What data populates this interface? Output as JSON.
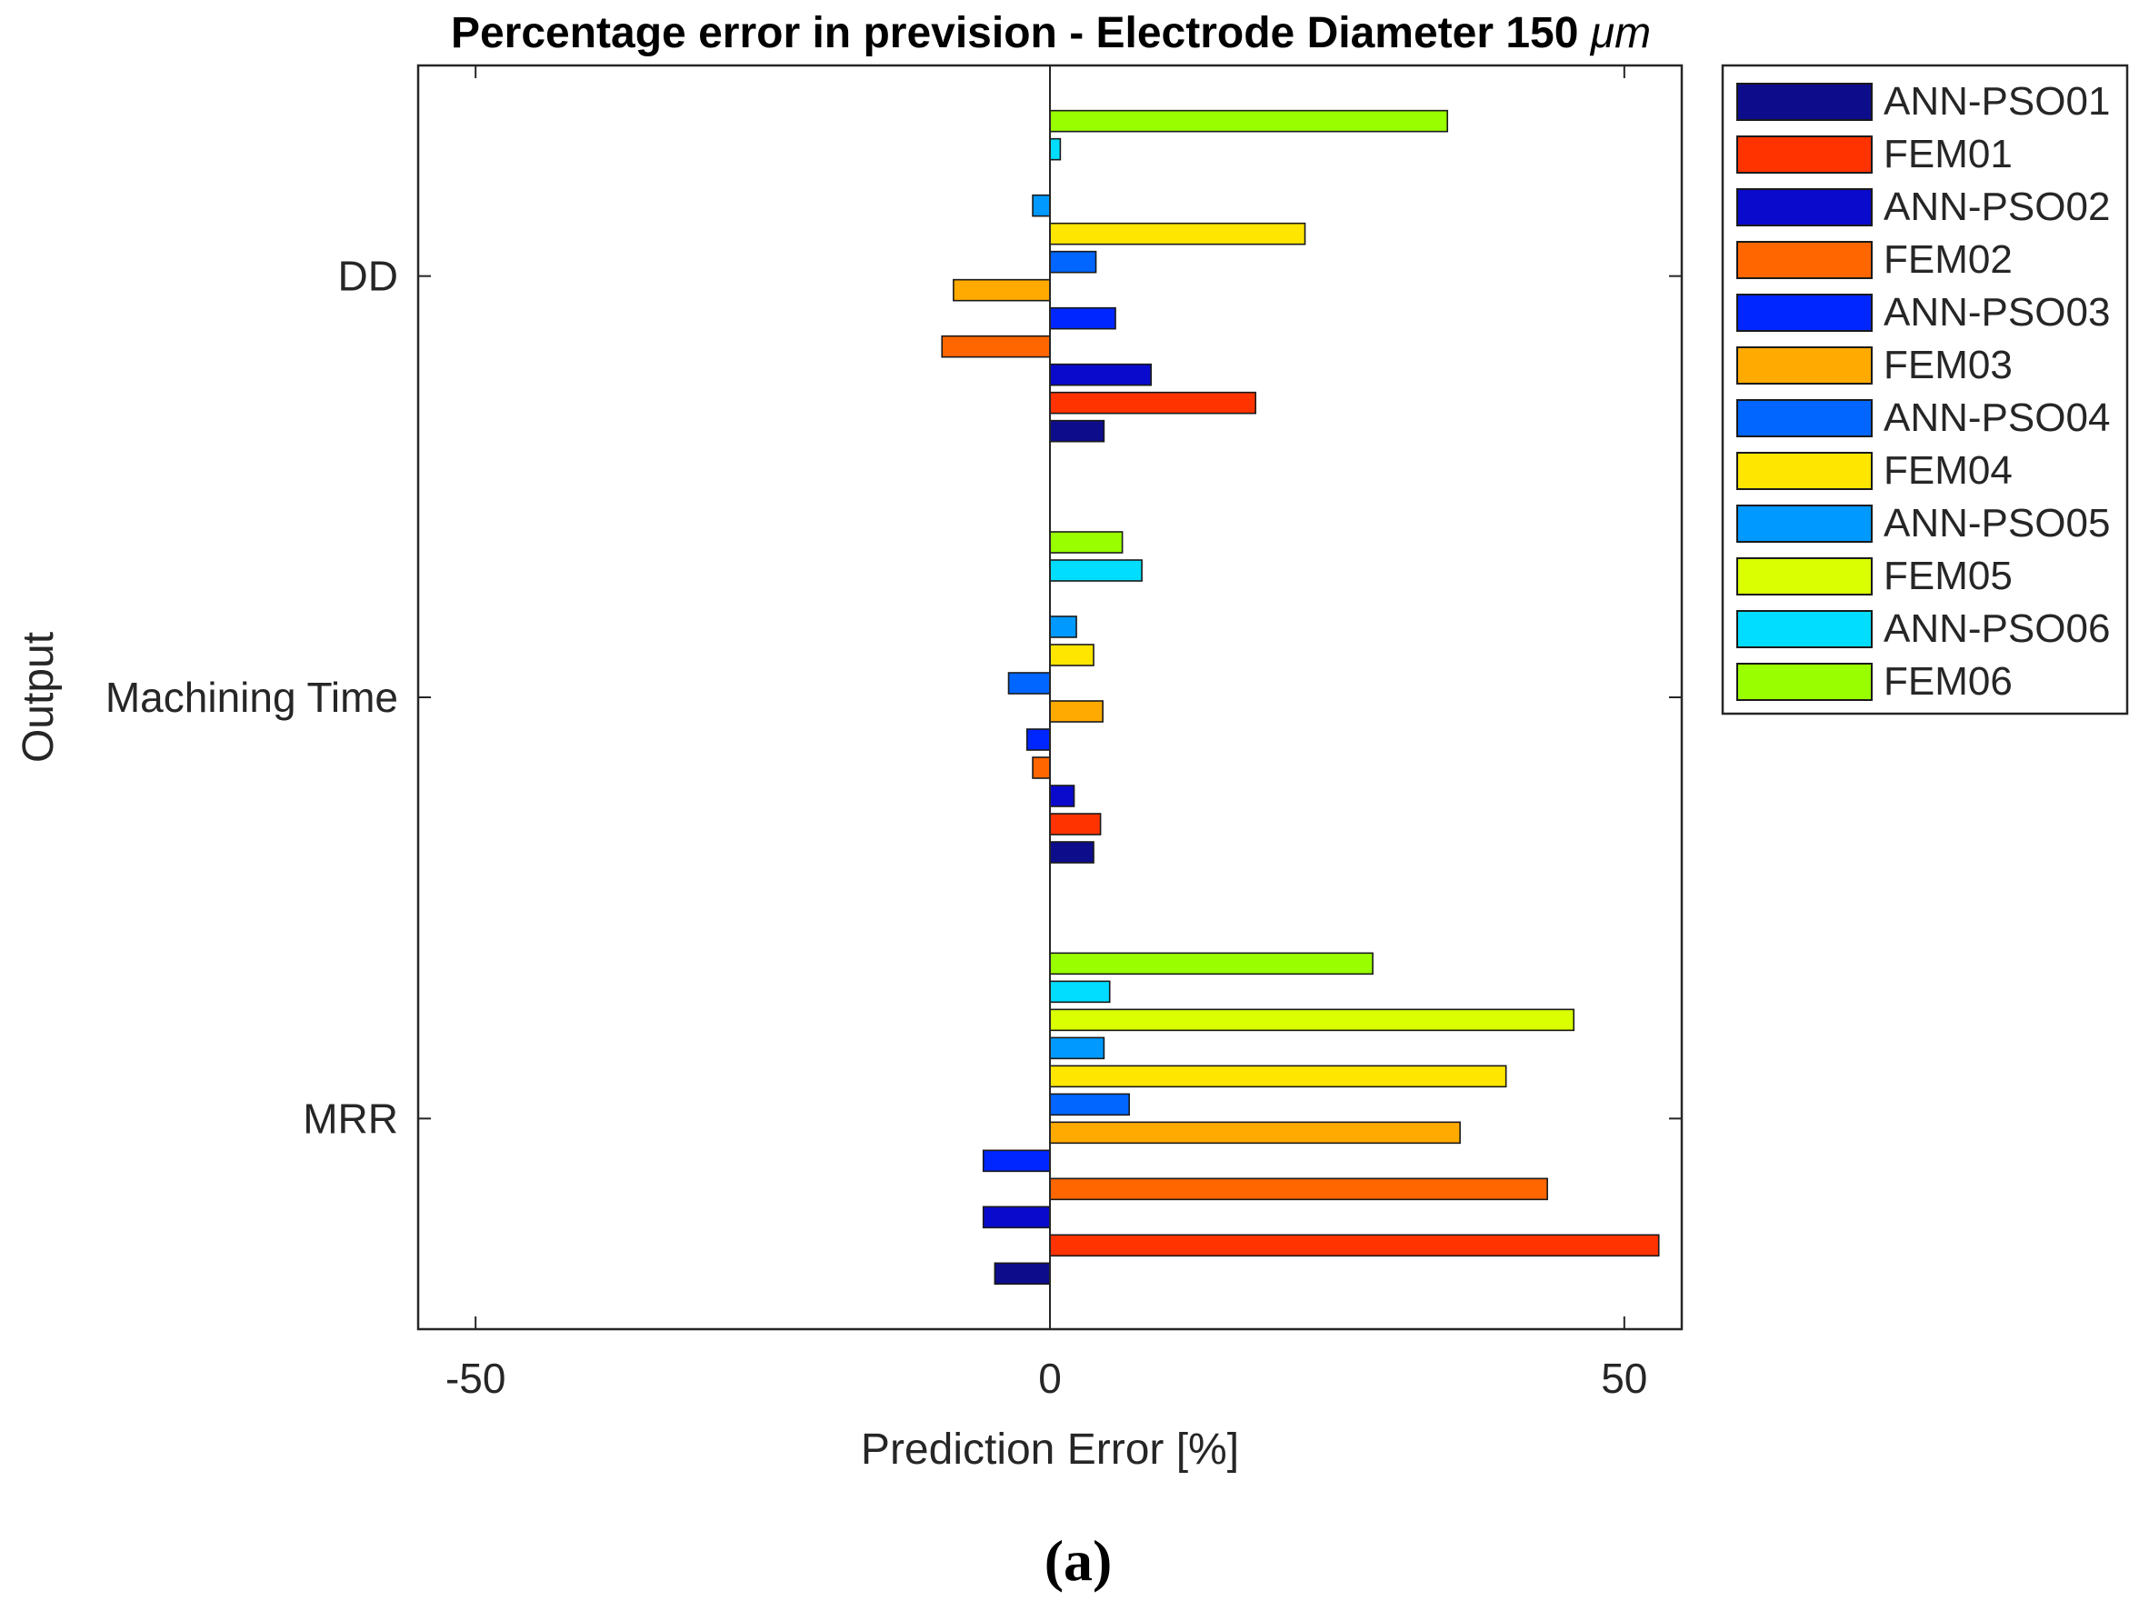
{
  "caption": "(a)",
  "chart_data": {
    "type": "bar",
    "orientation": "horizontal",
    "title_prefix": "Percentage error in prevision - Electrode Diameter 150 ",
    "title_unit": "μm",
    "title": "Percentage error in prevision - Electrode Diameter 150 μm",
    "xlabel": "Prediction Error [%]",
    "ylabel": "Output",
    "xlim": [
      -55,
      55
    ],
    "xticks": [
      -50,
      0,
      50
    ],
    "xtick_labels": [
      "-50",
      "0",
      "50"
    ],
    "grid": false,
    "legend_position": "outside-top-right",
    "categories": [
      "MRR",
      "Machining Time",
      "DD"
    ],
    "series": [
      {
        "name": "ANN-PSO01",
        "color": "#0D0D8C",
        "values": [
          -4.8,
          3.8,
          4.7
        ]
      },
      {
        "name": "FEM01",
        "color": "#FF3300",
        "values": [
          53.0,
          4.4,
          17.9
        ]
      },
      {
        "name": "ANN-PSO02",
        "color": "#0A0ACC",
        "values": [
          -5.8,
          2.1,
          8.8
        ]
      },
      {
        "name": "FEM02",
        "color": "#FF6600",
        "values": [
          43.3,
          -1.5,
          -9.4
        ]
      },
      {
        "name": "ANN-PSO03",
        "color": "#0026FF",
        "values": [
          -5.8,
          -2.0,
          5.7
        ]
      },
      {
        "name": "FEM03",
        "color": "#FFAA00",
        "values": [
          35.7,
          4.6,
          -8.4
        ]
      },
      {
        "name": "ANN-PSO04",
        "color": "#0066FF",
        "values": [
          6.9,
          -3.6,
          4.0
        ]
      },
      {
        "name": "FEM04",
        "color": "#FFE600",
        "values": [
          39.7,
          3.8,
          22.2
        ]
      },
      {
        "name": "ANN-PSO05",
        "color": "#0099FF",
        "values": [
          4.7,
          2.3,
          -1.5
        ]
      },
      {
        "name": "FEM05",
        "color": "#D9FF00",
        "values": [
          45.6,
          0.0,
          0.0
        ]
      },
      {
        "name": "ANN-PSO06",
        "color": "#00DDFF",
        "values": [
          5.2,
          8.0,
          0.9
        ]
      },
      {
        "name": "FEM06",
        "color": "#99FF00",
        "values": [
          28.1,
          6.3,
          34.6
        ]
      }
    ]
  }
}
